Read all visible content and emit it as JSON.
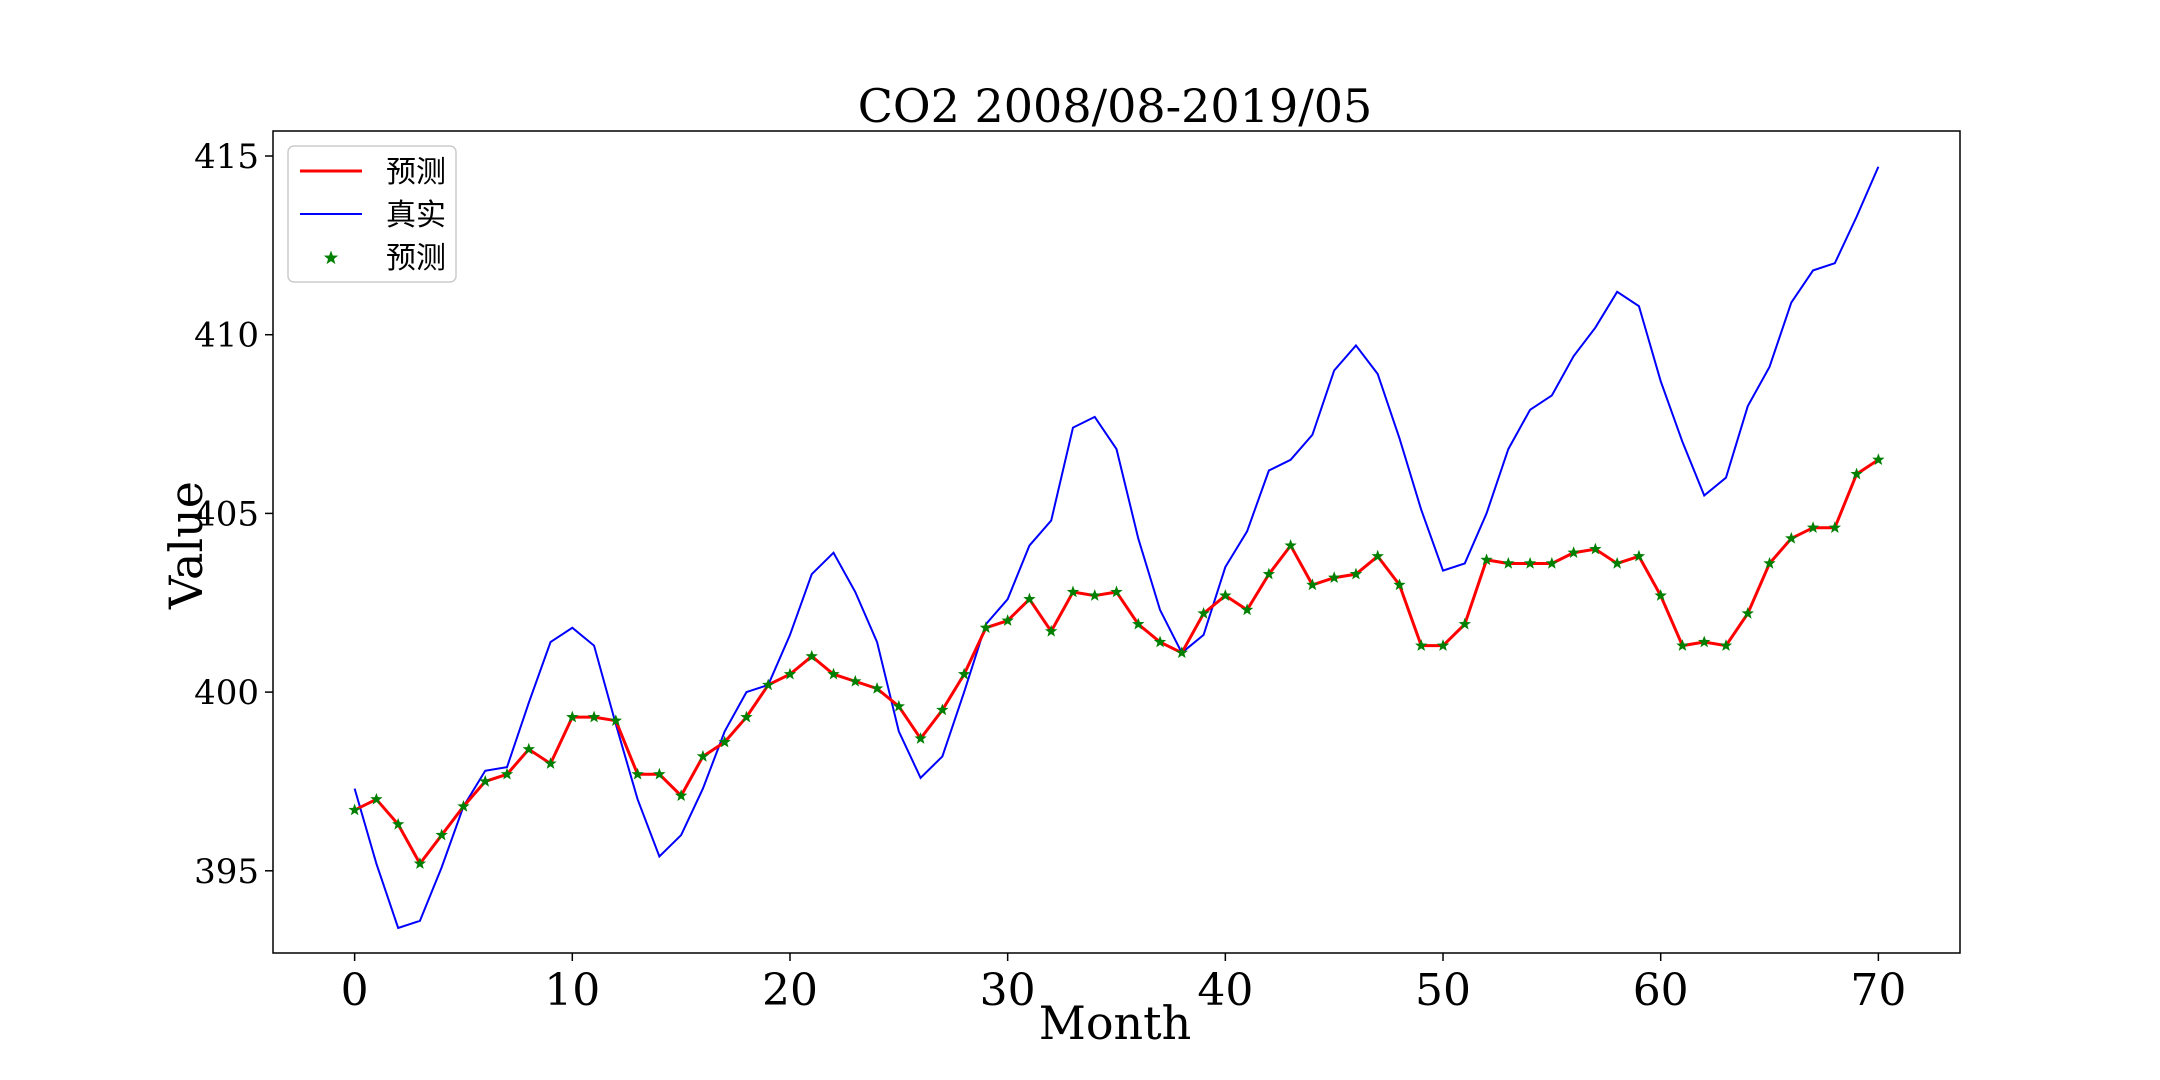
{
  "chart_data": {
    "type": "line",
    "title": "CO2 2008/08-2019/05",
    "xlabel": "Month",
    "ylabel": "Value",
    "xlim": [
      -3.75,
      73.75
    ],
    "ylim": [
      392.7,
      415.7
    ],
    "xticks": [
      0,
      10,
      20,
      30,
      40,
      50,
      60,
      70
    ],
    "yticks": [
      395,
      400,
      405,
      410,
      415
    ],
    "grid": false,
    "legend": {
      "location": "upper-left",
      "entries": [
        {
          "label": "预测",
          "style": "line",
          "color": "#ff0000"
        },
        {
          "label": "真实",
          "style": "line",
          "color": "#0000ff"
        },
        {
          "label": "预测",
          "style": "star",
          "color": "#008000"
        }
      ]
    },
    "x": [
      0,
      1,
      2,
      3,
      4,
      5,
      6,
      7,
      8,
      9,
      10,
      11,
      12,
      13,
      14,
      15,
      16,
      17,
      18,
      19,
      20,
      21,
      22,
      23,
      24,
      25,
      26,
      27,
      28,
      29,
      30,
      31,
      32,
      33,
      34,
      35,
      36,
      37,
      38,
      39,
      40,
      41,
      42,
      43,
      44,
      45,
      46,
      47,
      48,
      49,
      50,
      51,
      52,
      53,
      54,
      55,
      56,
      57,
      58,
      59,
      60,
      61,
      62,
      63,
      64,
      65,
      66,
      67,
      68,
      69,
      70
    ],
    "series": [
      {
        "name": "预测",
        "color": "#ff0000",
        "marker_color": "#008000",
        "values": [
          396.7,
          397.0,
          396.3,
          395.2,
          396.0,
          396.8,
          397.5,
          397.7,
          398.4,
          398.0,
          399.3,
          399.3,
          399.2,
          397.7,
          397.7,
          397.1,
          398.2,
          398.6,
          399.3,
          400.2,
          400.5,
          401.0,
          400.5,
          400.3,
          400.1,
          399.6,
          398.7,
          399.5,
          400.5,
          401.8,
          402.0,
          402.6,
          401.7,
          402.8,
          402.7,
          402.8,
          401.9,
          401.4,
          401.1,
          402.2,
          402.7,
          402.3,
          403.3,
          404.1,
          403.0,
          403.2,
          403.3,
          403.8,
          403.0,
          401.3,
          401.3,
          401.9,
          403.7,
          403.6,
          403.6,
          403.6,
          403.9,
          404.0,
          403.6,
          403.8,
          402.7,
          401.3,
          401.4,
          401.3,
          402.2,
          403.6,
          404.3,
          404.6,
          404.6,
          406.1,
          406.5
        ]
      },
      {
        "name": "真实",
        "color": "#0000ff",
        "values": [
          397.3,
          395.2,
          393.4,
          393.6,
          395.1,
          396.8,
          397.8,
          397.9,
          399.7,
          401.4,
          401.8,
          401.3,
          399.1,
          397.0,
          395.4,
          396.0,
          397.3,
          398.9,
          400.0,
          400.2,
          401.6,
          403.3,
          403.9,
          402.8,
          401.4,
          398.9,
          397.6,
          398.2,
          400.0,
          401.9,
          402.6,
          404.1,
          404.8,
          407.4,
          407.7,
          406.8,
          404.3,
          402.3,
          401.1,
          401.6,
          403.5,
          404.5,
          406.2,
          406.5,
          407.2,
          409.0,
          409.7,
          408.9,
          407.1,
          405.1,
          403.4,
          403.6,
          405.0,
          406.8,
          407.9,
          408.3,
          409.4,
          410.2,
          411.2,
          410.8,
          408.7,
          407.0,
          405.5,
          406.0,
          408.0,
          409.1,
          410.9,
          411.8,
          412.0,
          413.3,
          414.7
        ]
      }
    ]
  }
}
